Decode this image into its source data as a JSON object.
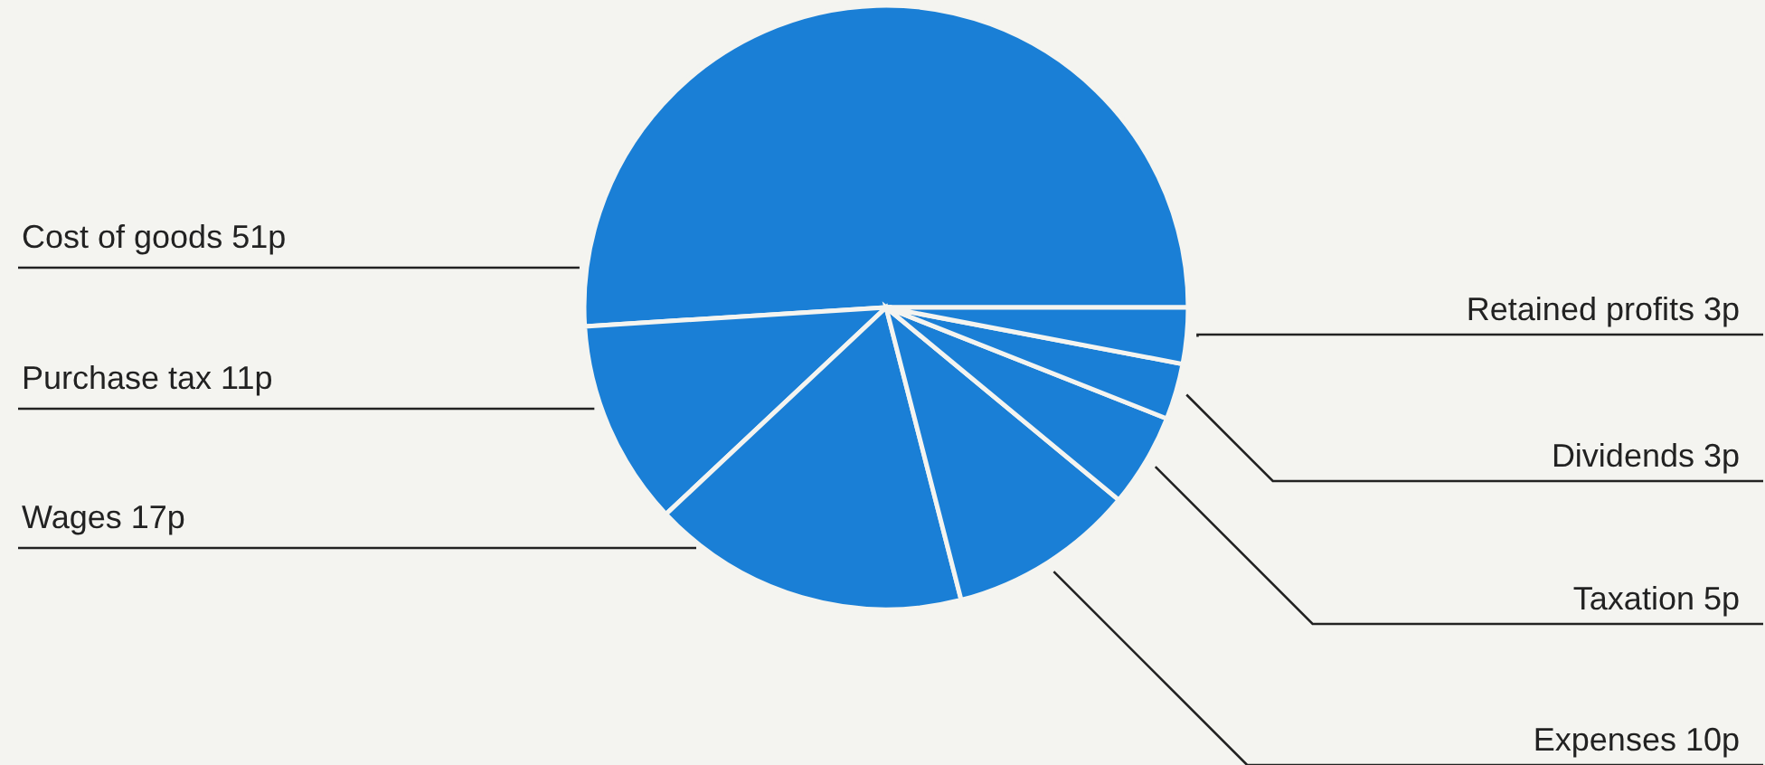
{
  "chart_data": {
    "type": "pie",
    "categories": [
      "Cost of goods",
      "Purchase tax",
      "Wages",
      "Expenses",
      "Taxation",
      "Dividends",
      "Retained profits"
    ],
    "values": [
      51,
      11,
      17,
      10,
      5,
      3,
      3
    ],
    "value_labels": [
      "51p",
      "11p",
      "17p",
      "10p",
      "5p",
      "3p",
      "3p"
    ],
    "colors": [
      "#1a7fd6",
      "#1a7fd6",
      "#1a7fd6",
      "#1a7fd6",
      "#1a7fd6",
      "#1a7fd6",
      "#1a7fd6"
    ],
    "data_labels": true
  }
}
